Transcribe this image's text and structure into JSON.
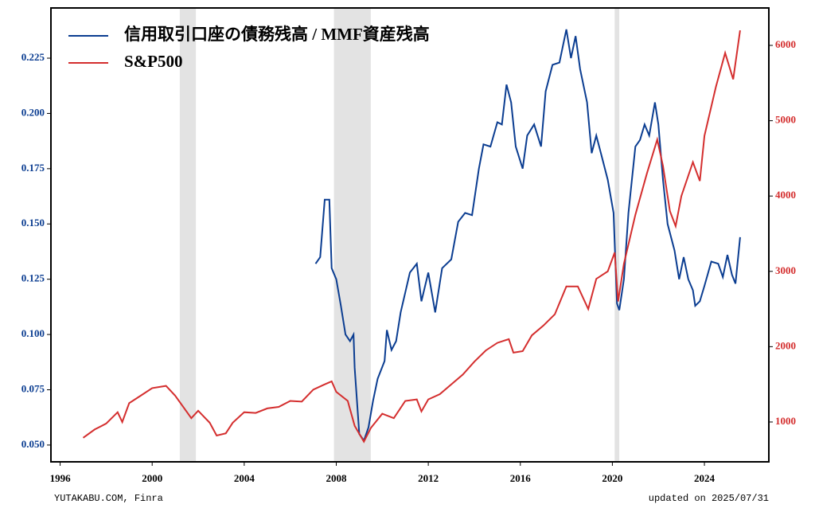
{
  "chart_data": {
    "type": "line",
    "xlim": [
      1995.6,
      2026.8
    ],
    "xticks": [
      1996,
      2000,
      2004,
      2008,
      2012,
      2016,
      2020,
      2024
    ],
    "ylim": [
      0.0424,
      0.2477
    ],
    "yticks": [
      {
        "value": 0.05,
        "label": "0.050"
      },
      {
        "value": 0.075,
        "label": "0.075"
      },
      {
        "value": 0.1,
        "label": "0.100"
      },
      {
        "value": 0.125,
        "label": "0.125"
      },
      {
        "value": 0.15,
        "label": "0.150"
      },
      {
        "value": 0.175,
        "label": "0.175"
      },
      {
        "value": 0.2,
        "label": "0.200"
      },
      {
        "value": 0.225,
        "label": "0.225"
      }
    ],
    "y2lim": [
      471,
      6497
    ],
    "y2ticks": [
      1000,
      2000,
      3000,
      4000,
      5000,
      6000
    ],
    "shaded_periods": [
      [
        2001.2,
        2001.9
      ],
      [
        2007.9,
        2009.5
      ],
      [
        2020.1,
        2020.3
      ]
    ],
    "series": [
      {
        "name": "信用取引口座の債務残高 / MMF資産残高",
        "color": "#0b3d91",
        "x": [
          2007.1,
          2007.3,
          2007.5,
          2007.7,
          2007.8,
          2008.0,
          2008.2,
          2008.4,
          2008.6,
          2008.75,
          2008.8,
          2009.0,
          2009.2,
          2009.4,
          2009.6,
          2009.8,
          2010.1,
          2010.2,
          2010.4,
          2010.6,
          2010.8,
          2011.0,
          2011.2,
          2011.5,
          2011.7,
          2012.0,
          2012.3,
          2012.6,
          2013.0,
          2013.3,
          2013.6,
          2013.9,
          2014.2,
          2014.4,
          2014.7,
          2015.0,
          2015.2,
          2015.4,
          2015.6,
          2015.8,
          2016.1,
          2016.3,
          2016.6,
          2016.9,
          2017.1,
          2017.4,
          2017.7,
          2018.0,
          2018.2,
          2018.4,
          2018.6,
          2018.9,
          2019.1,
          2019.3,
          2019.5,
          2019.8,
          2020.05,
          2020.2,
          2020.3,
          2020.5,
          2020.7,
          2021.0,
          2021.2,
          2021.4,
          2021.6,
          2021.85,
          2022.0,
          2022.2,
          2022.4,
          2022.7,
          2022.9,
          2023.1,
          2023.3,
          2023.5,
          2023.6,
          2023.8,
          2024.0,
          2024.3,
          2024.6,
          2024.8,
          2025.0,
          2025.2,
          2025.35,
          2025.55
        ],
        "values": [
          0.132,
          0.135,
          0.161,
          0.161,
          0.13,
          0.125,
          0.113,
          0.1,
          0.097,
          0.1,
          0.085,
          0.055,
          0.052,
          0.058,
          0.07,
          0.08,
          0.088,
          0.102,
          0.093,
          0.097,
          0.11,
          0.119,
          0.128,
          0.132,
          0.115,
          0.128,
          0.11,
          0.13,
          0.134,
          0.151,
          0.155,
          0.154,
          0.175,
          0.186,
          0.185,
          0.196,
          0.195,
          0.213,
          0.205,
          0.185,
          0.175,
          0.19,
          0.195,
          0.185,
          0.21,
          0.222,
          0.223,
          0.238,
          0.225,
          0.235,
          0.22,
          0.205,
          0.182,
          0.19,
          0.182,
          0.17,
          0.155,
          0.114,
          0.111,
          0.125,
          0.155,
          0.185,
          0.188,
          0.195,
          0.19,
          0.205,
          0.195,
          0.17,
          0.15,
          0.138,
          0.125,
          0.135,
          0.125,
          0.12,
          0.113,
          0.115,
          0.122,
          0.133,
          0.132,
          0.126,
          0.136,
          0.127,
          0.123,
          0.144
        ]
      },
      {
        "name": "S&P500",
        "color": "#d42e2e",
        "axis": "y2",
        "x": [
          1997.0,
          1997.5,
          1998.0,
          1998.5,
          1998.7,
          1999.0,
          1999.5,
          2000.0,
          2000.6,
          2001.0,
          2001.7,
          2002.0,
          2002.5,
          2002.8,
          2003.2,
          2003.5,
          2004.0,
          2004.5,
          2005.0,
          2005.5,
          2006.0,
          2006.5,
          2007.0,
          2007.5,
          2007.8,
          2008.0,
          2008.5,
          2008.8,
          2009.2,
          2009.5,
          2010.0,
          2010.5,
          2011.0,
          2011.5,
          2011.7,
          2012.0,
          2012.5,
          2013.0,
          2013.5,
          2014.0,
          2014.5,
          2015.0,
          2015.5,
          2015.7,
          2016.1,
          2016.5,
          2017.0,
          2017.5,
          2018.0,
          2018.5,
          2018.95,
          2019.3,
          2019.8,
          2020.1,
          2020.25,
          2020.5,
          2021.0,
          2021.5,
          2021.95,
          2022.2,
          2022.5,
          2022.75,
          2023.0,
          2023.5,
          2023.8,
          2024.0,
          2024.5,
          2024.9,
          2025.25,
          2025.55
        ],
        "values": [
          790,
          900,
          980,
          1130,
          1000,
          1250,
          1350,
          1450,
          1480,
          1350,
          1050,
          1150,
          990,
          820,
          850,
          990,
          1130,
          1120,
          1180,
          1200,
          1280,
          1270,
          1430,
          1500,
          1540,
          1400,
          1280,
          950,
          740,
          920,
          1110,
          1050,
          1280,
          1300,
          1140,
          1300,
          1370,
          1500,
          1630,
          1800,
          1950,
          2050,
          2100,
          1920,
          1940,
          2150,
          2280,
          2430,
          2800,
          2800,
          2500,
          2900,
          3000,
          3250,
          2600,
          3100,
          3750,
          4300,
          4750,
          4400,
          3800,
          3600,
          4000,
          4450,
          4200,
          4800,
          5450,
          5900,
          5550,
          6200
        ]
      }
    ],
    "source": "YUTAKABU.COM, Finra",
    "updated": "updated on 2025/07/31"
  }
}
